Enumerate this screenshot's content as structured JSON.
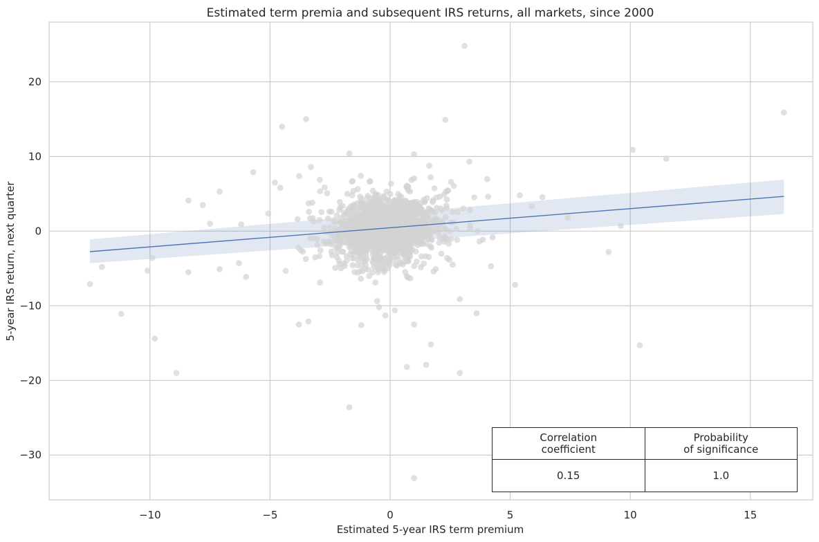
{
  "chart_data": {
    "type": "scatter",
    "title": "Estimated term premia and subsequent IRS returns, all markets, since 2000",
    "xlabel": "Estimated 5-year IRS term premium",
    "ylabel": "5-year IRS return, next quarter",
    "xlim": [
      -14.2,
      17.6
    ],
    "ylim": [
      -36,
      28
    ],
    "xticks": [
      -10,
      -5,
      0,
      5,
      10,
      15
    ],
    "xtick_labels": [
      "−10",
      "−5",
      "0",
      "5",
      "10",
      "15"
    ],
    "yticks": [
      -30,
      -20,
      -10,
      0,
      10,
      20
    ],
    "ytick_labels": [
      "−30",
      "−20",
      "−10",
      "0",
      "10",
      "20"
    ],
    "grid": true,
    "point_color": "#d3d3d3",
    "line_color": "#4c72b0",
    "regression": {
      "x": [
        -12.5,
        16.4
      ],
      "y": [
        -2.75,
        4.65
      ],
      "band_lower": [
        -4.3,
        2.3
      ],
      "band_upper": [
        -1.1,
        6.9
      ]
    },
    "cluster": {
      "count": 1800,
      "x_center": -0.2,
      "y_center": 0.3,
      "x_sd": 0.9,
      "y_sd": 1.9
    },
    "outliers": [
      [
        3.1,
        24.8
      ],
      [
        16.4,
        15.9
      ],
      [
        -3.5,
        15.0
      ],
      [
        -4.5,
        14.0
      ],
      [
        2.3,
        14.9
      ],
      [
        10.1,
        10.9
      ],
      [
        11.5,
        9.7
      ],
      [
        -1.7,
        10.4
      ],
      [
        1.0,
        10.3
      ],
      [
        3.3,
        9.3
      ],
      [
        -5.7,
        7.9
      ],
      [
        -4.8,
        6.5
      ],
      [
        -7.1,
        5.3
      ],
      [
        5.4,
        4.8
      ],
      [
        -8.4,
        4.1
      ],
      [
        5.9,
        3.3
      ],
      [
        -7.8,
        3.5
      ],
      [
        7.4,
        1.8
      ],
      [
        9.6,
        0.7
      ],
      [
        -7.5,
        1.0
      ],
      [
        -6.2,
        0.9
      ],
      [
        -12.5,
        -7.1
      ],
      [
        -12.0,
        -4.8
      ],
      [
        -10.1,
        -5.3
      ],
      [
        -9.9,
        -3.6
      ],
      [
        -11.2,
        -11.1
      ],
      [
        -9.8,
        -14.4
      ],
      [
        -8.9,
        -19.0
      ],
      [
        -8.4,
        -5.5
      ],
      [
        -7.1,
        -5.1
      ],
      [
        -6.3,
        -4.3
      ],
      [
        5.2,
        -7.2
      ],
      [
        9.1,
        -2.8
      ],
      [
        10.4,
        -15.3
      ],
      [
        -3.8,
        -12.5
      ],
      [
        -3.4,
        -12.1
      ],
      [
        -1.7,
        -23.6
      ],
      [
        1.0,
        -33.1
      ],
      [
        0.7,
        -18.2
      ],
      [
        1.5,
        -17.9
      ],
      [
        2.9,
        -19.0
      ],
      [
        3.6,
        -11.0
      ],
      [
        1.7,
        -15.2
      ],
      [
        -0.2,
        -11.3
      ],
      [
        0.2,
        -10.6
      ],
      [
        1.0,
        -12.5
      ],
      [
        2.9,
        -9.1
      ],
      [
        -1.2,
        -12.6
      ],
      [
        4.2,
        -4.7
      ],
      [
        -3.3,
        8.6
      ]
    ]
  },
  "stats_table": {
    "headers": [
      "Correlation\ncoefficient",
      "Probability\nof significance"
    ],
    "header_lines": [
      [
        "Correlation",
        "coefficient"
      ],
      [
        "Probability",
        "of significance"
      ]
    ],
    "values": [
      "0.15",
      "1.0"
    ]
  }
}
